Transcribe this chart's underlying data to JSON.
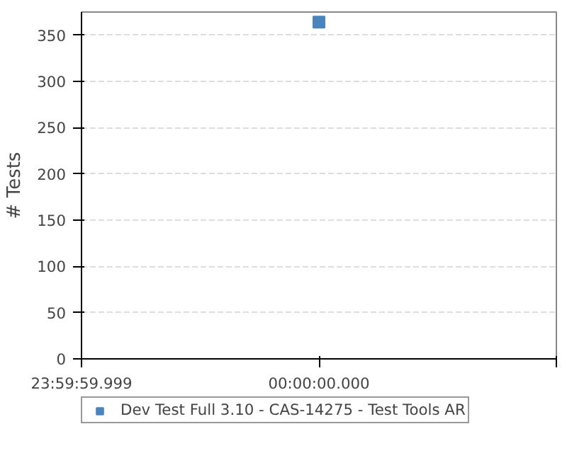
{
  "chart_data": {
    "type": "scatter",
    "ylabel": "# Tests",
    "categories": [
      "23:59:59.999",
      "00:00:00.000",
      null
    ],
    "series": [
      {
        "name": "Dev Test Full 3.10 - CAS-14275 - Test Tools AR",
        "color": "#4a84be",
        "values": [
          null,
          364,
          null
        ]
      }
    ],
    "ylim": [
      0,
      375
    ],
    "yticks": [
      0,
      50,
      100,
      150,
      200,
      250,
      300,
      350
    ],
    "grid": "y",
    "legend": "bottom",
    "marker": "square"
  }
}
